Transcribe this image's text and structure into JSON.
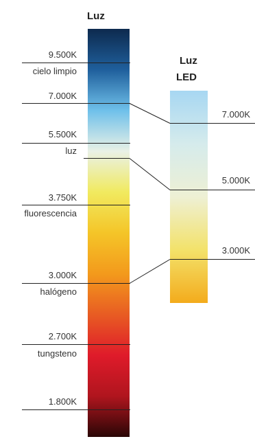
{
  "titles": {
    "main_bar": "Luz",
    "led_bar_line1": "Luz",
    "led_bar_line2": "LED"
  },
  "main_scale": [
    {
      "kelvin": "9.500K",
      "source": "cielo limpio"
    },
    {
      "kelvin": "7.000K",
      "source": ""
    },
    {
      "kelvin": "5.500K",
      "source": "luz"
    },
    {
      "kelvin": "3.750K",
      "source": "fluorescencia"
    },
    {
      "kelvin": "3.000K",
      "source": "halógeno"
    },
    {
      "kelvin": "2.700K",
      "source": "tungsteno"
    },
    {
      "kelvin": "1.800K",
      "source": ""
    }
  ],
  "led_scale": [
    {
      "kelvin": "7.000K"
    },
    {
      "kelvin": "5.000K"
    },
    {
      "kelvin": "3.000K"
    }
  ],
  "colors": {
    "main_gradient": [
      "#0d2a4e",
      "#1f5f9c",
      "#6fc0ea",
      "#e9f1e6",
      "#f1ea60",
      "#f4c528",
      "#f39a1c",
      "#e85c23",
      "#df1b2a",
      "#b0151e",
      "#2a0606"
    ],
    "led_gradient": [
      "#a7d7f2",
      "#d5ebec",
      "#eef0d4",
      "#f3e26a",
      "#f3ab1c"
    ],
    "line": "#222222"
  }
}
